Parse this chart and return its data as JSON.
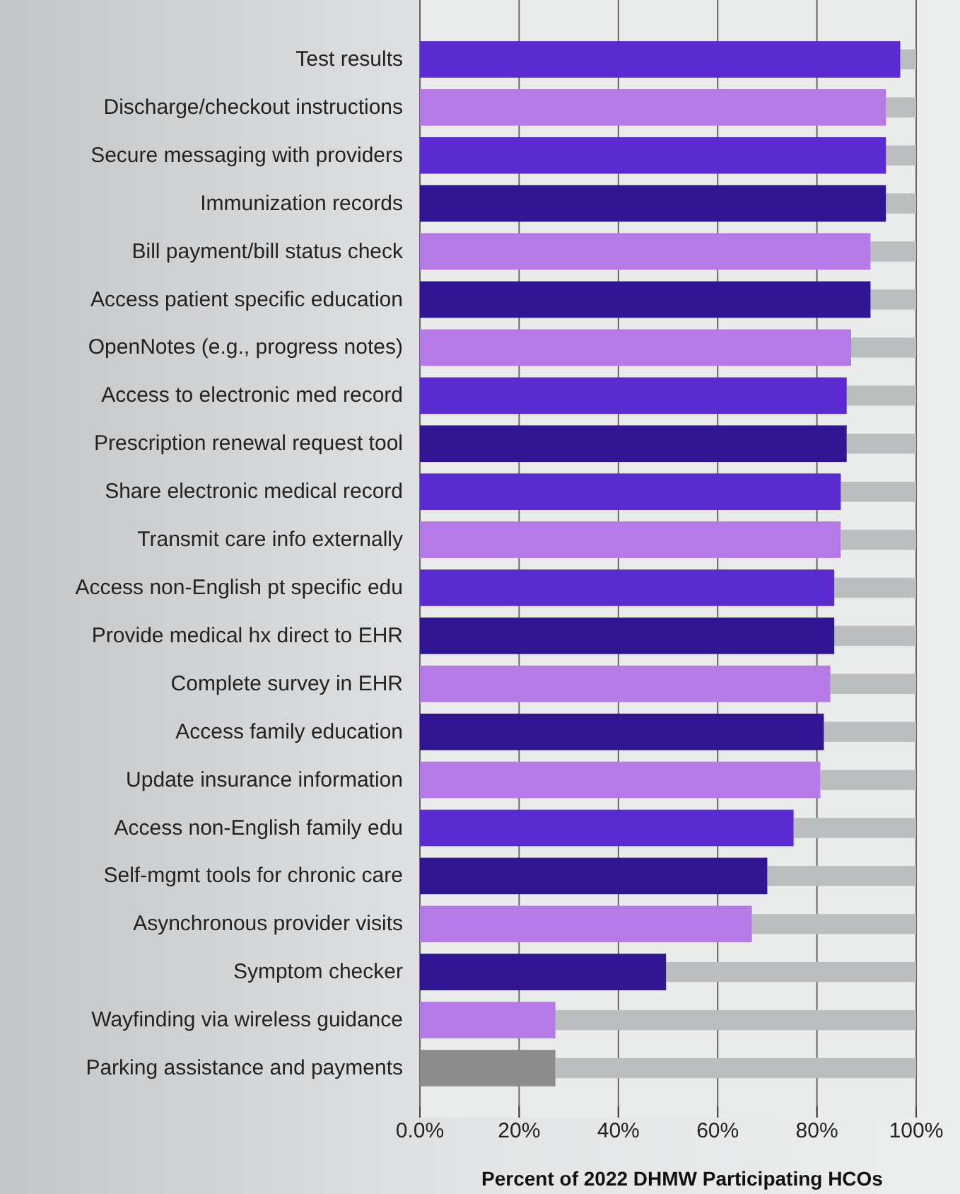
{
  "chart_data": {
    "type": "bar",
    "orientation": "horizontal",
    "stacked": true,
    "xlabel": "Percent of 2022 DHMW Participating HCOs",
    "categories": [
      "Test results",
      "Discharge/checkout instructions",
      "Secure messaging with providers",
      "Immunization records",
      "Bill payment/bill status check",
      "Access patient specific education",
      "OpenNotes (e.g., progress notes)",
      "Access to electronic med record",
      "Prescription renewal request tool",
      "Share electronic medical record",
      "Transmit care info externally",
      "Access non-English pt specific edu",
      "Provide medical hx direct to EHR",
      "Complete survey in EHR",
      "Access family education",
      "Update insurance information",
      "Access non-English family edu",
      "Self-mgmt tools for chronic care",
      "Asynchronous provider visits",
      "Symptom checker",
      "Wayfinding via wireless guidance",
      "Parking assistance and payments"
    ],
    "series": [
      {
        "values": [
          96.8,
          93.9,
          93.9,
          93.9,
          90.8,
          90.8,
          86.9,
          86,
          86,
          84.8,
          84.8,
          83.5,
          83.5,
          82.7,
          81.4,
          80.7,
          75.3,
          70,
          66.9,
          49.6,
          27.3,
          27.3
        ],
        "colors": [
          "#5a2bd0",
          "#b57ae8",
          "#5a2bd0",
          "#311592",
          "#b57ae8",
          "#311592",
          "#b57ae8",
          "#5a2bd0",
          "#311592",
          "#5a2bd0",
          "#b57ae8",
          "#5a2bd0",
          "#311592",
          "#b57ae8",
          "#311592",
          "#b57ae8",
          "#5a2bd0",
          "#311592",
          "#b57ae8",
          "#311592",
          "#b57ae8",
          "#8c8c8c"
        ]
      },
      {
        "color": "#bcbdbf",
        "values": [
          3.2,
          6.1,
          6.1,
          6.1,
          9.2,
          9.2,
          13.1,
          14,
          14,
          15.2,
          15.2,
          16.5,
          16.5,
          17.3,
          18.6,
          19.3,
          24.7,
          30,
          33.1,
          50.4,
          72.7,
          72.7
        ]
      }
    ],
    "xlim": [
      0,
      100
    ],
    "xticks": [
      {
        "value": 0,
        "label": "0.0%"
      },
      {
        "value": 20,
        "label": "20%"
      },
      {
        "value": 40,
        "label": "40%"
      },
      {
        "value": 60,
        "label": "60%"
      },
      {
        "value": 80,
        "label": "80%"
      },
      {
        "value": 100,
        "label": "100%"
      }
    ],
    "grid": "x"
  }
}
